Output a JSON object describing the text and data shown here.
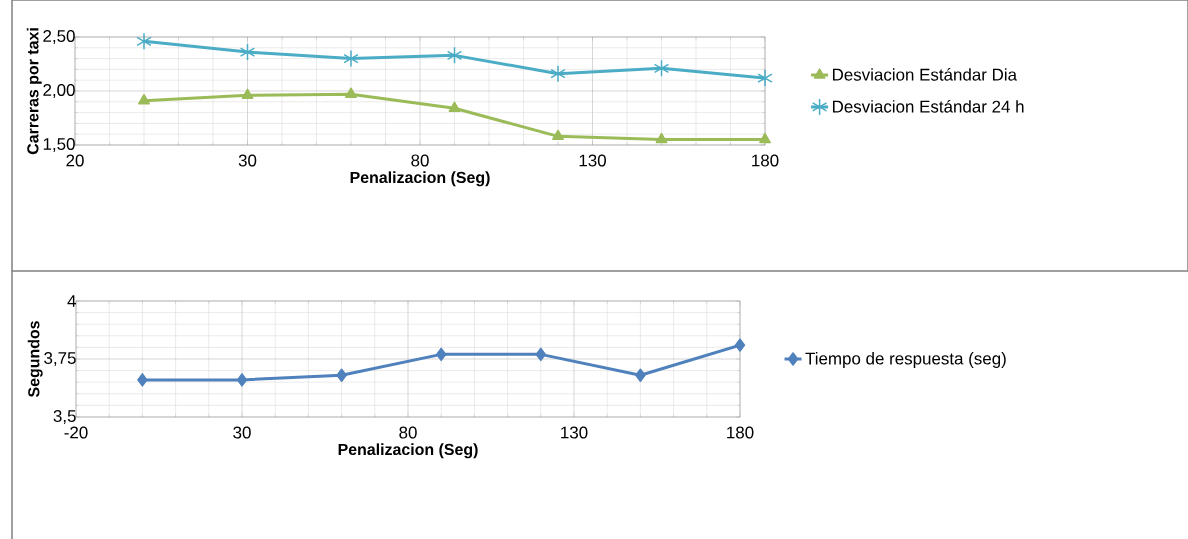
{
  "chart_data": [
    {
      "type": "line",
      "xlabel": "Penalizacion (Seg)",
      "ylabel": "Carreras por taxi",
      "x": [
        0,
        30,
        60,
        90,
        120,
        150,
        180
      ],
      "series": [
        {
          "name": "Desviacion Estándar Dia",
          "color": "#9bbb59",
          "marker": "triangle",
          "values": [
            1.91,
            1.96,
            1.97,
            1.84,
            1.58,
            1.55,
            1.55
          ]
        },
        {
          "name": "Desviacion Estándar 24 h",
          "color": "#4bacc6",
          "marker": "cross",
          "values": [
            2.46,
            2.36,
            2.3,
            2.33,
            2.16,
            2.21,
            2.12
          ]
        }
      ],
      "xlim": [
        -20,
        180
      ],
      "ylim": [
        1.5,
        2.5
      ],
      "xticks": [
        {
          "value": -20,
          "label": "20"
        },
        30,
        80,
        130,
        180
      ],
      "yticks": [
        {
          "value": 1.5,
          "label": "1,50"
        },
        {
          "value": 2.0,
          "label": "2,00"
        },
        {
          "value": 2.5,
          "label": "2,50"
        }
      ],
      "grid": true,
      "legend": "right"
    },
    {
      "type": "line",
      "xlabel": "Penalizacion (Seg)",
      "ylabel": "Segundos",
      "x": [
        0,
        30,
        60,
        90,
        120,
        150,
        180
      ],
      "series": [
        {
          "name": "Tiempo de respuesta (seg)",
          "color": "#4f81bd",
          "marker": "diamond",
          "values": [
            3.66,
            3.66,
            3.68,
            3.77,
            3.77,
            3.68,
            3.81
          ]
        }
      ],
      "xlim": [
        -20,
        180
      ],
      "ylim": [
        3.5,
        4
      ],
      "xticks": [
        -20,
        30,
        80,
        130,
        180
      ],
      "yticks": [
        {
          "value": 3.5,
          "label": "3,5"
        },
        {
          "value": 3.75,
          "label": "3,75"
        },
        4
      ],
      "grid": true,
      "legend": "right"
    }
  ]
}
